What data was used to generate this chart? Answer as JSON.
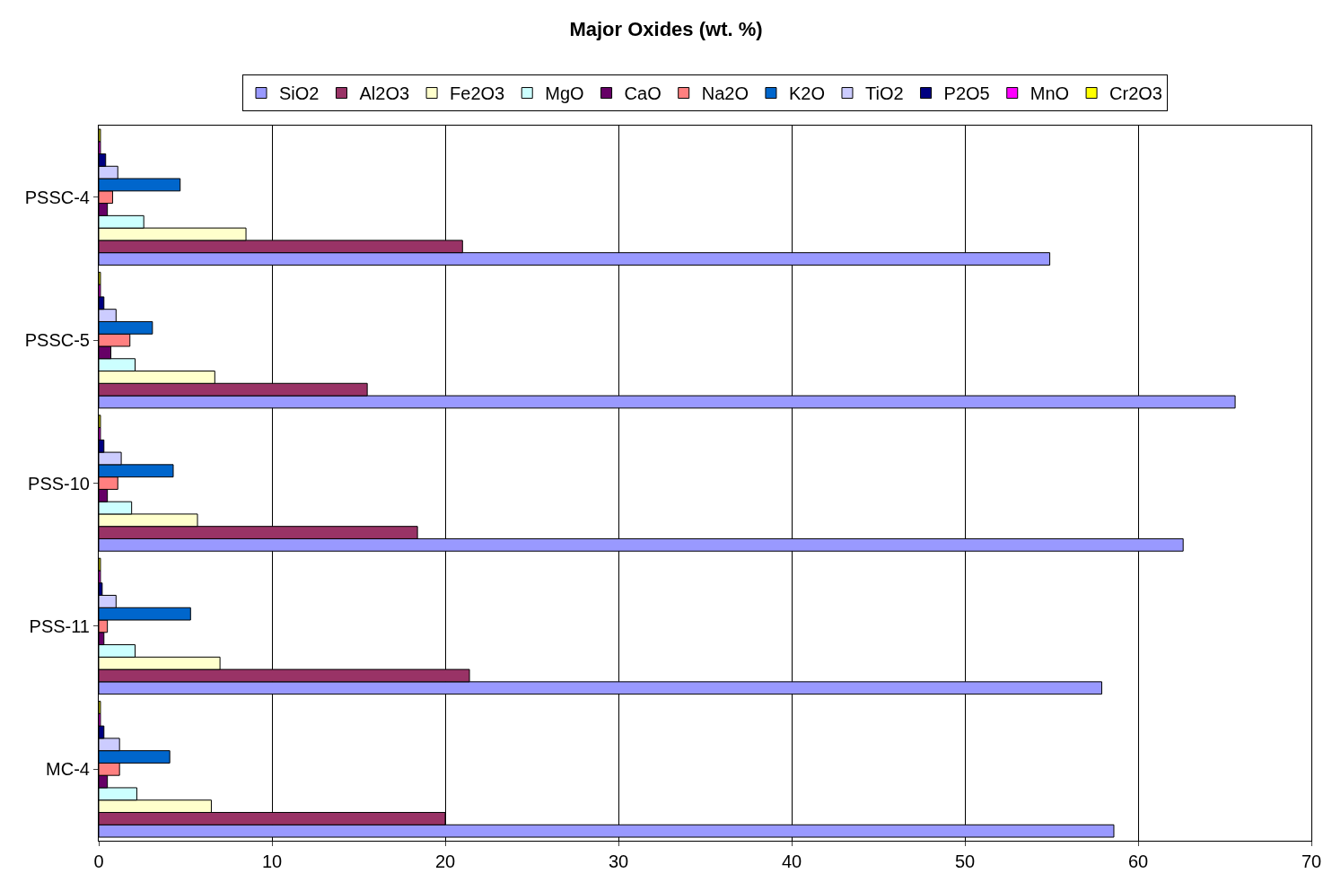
{
  "chart_data": {
    "type": "bar",
    "orientation": "horizontal",
    "title": "Major Oxides (wt. %)",
    "categories": [
      "PSSC-4",
      "PSSC-5",
      "PSS-10",
      "PSS-11",
      "MC-4"
    ],
    "series": [
      {
        "name": "SiO2",
        "color": "#9999ff",
        "values": [
          54.9,
          65.6,
          62.6,
          57.9,
          58.6
        ]
      },
      {
        "name": "Al2O3",
        "color": "#993366",
        "values": [
          21.0,
          15.5,
          18.4,
          21.4,
          20.0
        ]
      },
      {
        "name": "Fe2O3",
        "color": "#ffffcc",
        "values": [
          8.5,
          6.7,
          5.7,
          7.0,
          6.5
        ]
      },
      {
        "name": "MgO",
        "color": "#ccffff",
        "values": [
          2.6,
          2.1,
          1.9,
          2.1,
          2.2
        ]
      },
      {
        "name": "CaO",
        "color": "#660066",
        "values": [
          0.5,
          0.7,
          0.5,
          0.3,
          0.5
        ]
      },
      {
        "name": "Na2O",
        "color": "#ff8080",
        "values": [
          0.8,
          1.8,
          1.1,
          0.5,
          1.2
        ]
      },
      {
        "name": "K2O",
        "color": "#0066cc",
        "values": [
          4.7,
          3.1,
          4.3,
          5.3,
          4.1
        ]
      },
      {
        "name": "TiO2",
        "color": "#ccccff",
        "values": [
          1.1,
          1.0,
          1.3,
          1.0,
          1.2
        ]
      },
      {
        "name": "P2O5",
        "color": "#000080",
        "values": [
          0.4,
          0.3,
          0.3,
          0.2,
          0.3
        ]
      },
      {
        "name": "MnO",
        "color": "#ff00ff",
        "values": [
          0.1,
          0.1,
          0.1,
          0.1,
          0.1
        ]
      },
      {
        "name": "Cr2O3",
        "color": "#ffff00",
        "values": [
          0.1,
          0.1,
          0.1,
          0.1,
          0.1
        ]
      }
    ],
    "xlim": [
      0,
      70
    ],
    "xticks": [
      0,
      10,
      20,
      30,
      40,
      50,
      60,
      70
    ],
    "grid": "x",
    "legend": "top"
  }
}
